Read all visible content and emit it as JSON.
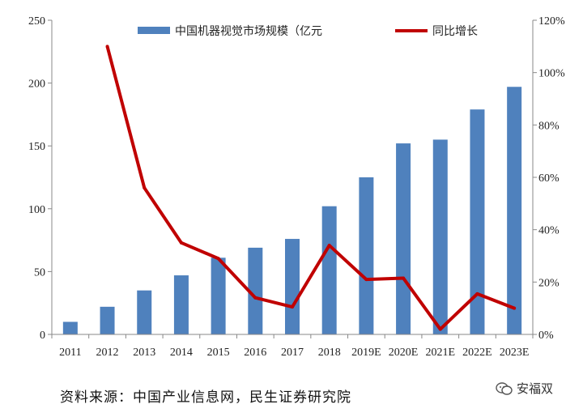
{
  "chart_data": {
    "type": "bar+line",
    "categories": [
      "2011",
      "2012",
      "2013",
      "2014",
      "2015",
      "2016",
      "2017",
      "2018",
      "2019E",
      "2020E",
      "2021E",
      "2022E",
      "2023E"
    ],
    "series": [
      {
        "name": "中国机器视觉市场规模（亿元",
        "type": "bar",
        "axis": "left",
        "color": "#4F81BD",
        "values": [
          10,
          22,
          35,
          47,
          61,
          69,
          76,
          102,
          125,
          152,
          155,
          179,
          197
        ]
      },
      {
        "name": "同比增长",
        "type": "line",
        "axis": "right",
        "color": "#C00000",
        "unit": "%",
        "values": [
          null,
          110,
          56,
          35,
          29,
          14,
          10.5,
          34,
          21,
          21.5,
          2,
          15.5,
          10
        ]
      }
    ],
    "y_left": {
      "min": 0,
      "max": 250,
      "ticks": [
        "0",
        "50",
        "100",
        "150",
        "200",
        "250"
      ]
    },
    "y_right": {
      "min": 0,
      "max": 120,
      "ticks": [
        "0%",
        "20%",
        "40%",
        "60%",
        "80%",
        "100%",
        "120%"
      ]
    },
    "legend_position": "top"
  },
  "source_text": "资料来源：中国产业信息网，民生证券研究院",
  "watermark_text": "安福双"
}
